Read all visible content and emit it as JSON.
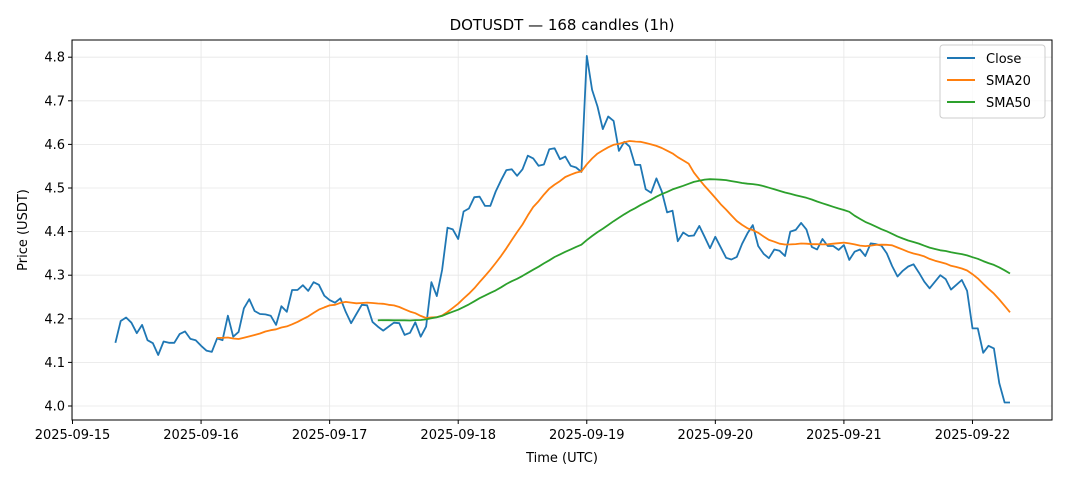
{
  "chart_data": {
    "type": "line",
    "title": "DOTUSDT — 168 candles (1h)",
    "xlabel": "Time (UTC)",
    "ylabel": "Price (USDT)",
    "start_time": "2025-09-15 08:00",
    "interval_hours": 1,
    "x_ticks": [
      "2025-09-15",
      "2025-09-16",
      "2025-09-17",
      "2025-09-18",
      "2025-09-19",
      "2025-09-20",
      "2025-09-21",
      "2025-09-22"
    ],
    "y_ticks": [
      4.0,
      4.1,
      4.2,
      4.3,
      4.4,
      4.5,
      4.6,
      4.7,
      4.8
    ],
    "y_tick_labels": [
      "4.0",
      "4.1",
      "4.2",
      "4.3",
      "4.4",
      "4.5",
      "4.6",
      "4.7",
      "4.8"
    ],
    "ylim": [
      3.97,
      4.835
    ],
    "grid": true,
    "legend_position": "top-right",
    "series": [
      {
        "name": "Close",
        "color": "#1f77b4",
        "window": 1,
        "values": [
          4.145,
          4.195,
          4.203,
          4.191,
          4.167,
          4.186,
          4.151,
          4.144,
          4.117,
          4.148,
          4.145,
          4.145,
          4.165,
          4.171,
          4.154,
          4.151,
          4.138,
          4.127,
          4.124,
          4.155,
          4.151,
          4.207,
          4.159,
          4.17,
          4.224,
          4.245,
          4.218,
          4.211,
          4.21,
          4.207,
          4.186,
          4.229,
          4.216,
          4.266,
          4.266,
          4.277,
          4.264,
          4.284,
          4.278,
          4.253,
          4.243,
          4.237,
          4.247,
          4.216,
          4.19,
          4.211,
          4.232,
          4.231,
          4.193,
          4.182,
          4.173,
          4.182,
          4.191,
          4.19,
          4.163,
          4.168,
          4.192,
          4.159,
          4.182,
          4.284,
          4.252,
          4.312,
          4.409,
          4.405,
          4.383,
          4.446,
          4.453,
          4.479,
          4.48,
          4.459,
          4.459,
          4.492,
          4.518,
          4.541,
          4.543,
          4.528,
          4.543,
          4.574,
          4.568,
          4.551,
          4.554,
          4.589,
          4.591,
          4.566,
          4.572,
          4.551,
          4.547,
          4.537,
          4.803,
          4.725,
          4.687,
          4.635,
          4.664,
          4.654,
          4.585,
          4.606,
          4.595,
          4.553,
          4.553,
          4.497,
          4.489,
          4.522,
          4.492,
          4.444,
          4.448,
          4.378,
          4.398,
          4.39,
          4.391,
          4.413,
          4.388,
          4.362,
          4.388,
          4.364,
          4.34,
          4.336,
          4.342,
          4.372,
          4.396,
          4.415,
          4.367,
          4.349,
          4.339,
          4.359,
          4.356,
          4.344,
          4.4,
          4.404,
          4.42,
          4.405,
          4.365,
          4.359,
          4.383,
          4.367,
          4.367,
          4.358,
          4.369,
          4.335,
          4.354,
          4.359,
          4.344,
          4.373,
          4.371,
          4.368,
          4.35,
          4.321,
          4.297,
          4.31,
          4.32,
          4.325,
          4.306,
          4.285,
          4.27,
          4.285,
          4.3,
          4.291,
          4.267,
          4.278,
          4.289,
          4.264,
          4.178,
          4.178,
          4.122,
          4.138,
          4.132,
          4.052,
          4.008,
          4.008
        ]
      },
      {
        "name": "SMA20",
        "color": "#ff7f0e",
        "window": 20
      },
      {
        "name": "SMA50",
        "color": "#2ca02c",
        "window": 50
      }
    ]
  }
}
